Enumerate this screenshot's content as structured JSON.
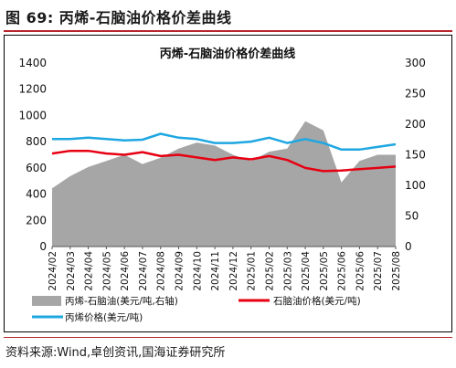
{
  "figure": {
    "title": "图 69:  丙烯-石脑油价格价差曲线",
    "source": "资料来源:Wind,卓创资讯,国海证券研究所"
  },
  "colors": {
    "spread": "#a6a6a6",
    "naphtha": "#e60012",
    "propylene": "#1ea7e1",
    "accent": "#b8262d"
  },
  "chart_data": {
    "type": "area",
    "title": "丙烯-石脑油价格价差曲线",
    "categories": [
      "2024/02",
      "2024/03",
      "2024/04",
      "2024/05",
      "2024/06",
      "2024/07",
      "2024/08",
      "2024/09",
      "2024/10",
      "2024/11",
      "2024/12",
      "2025/01",
      "2025/02",
      "2025/03",
      "2025/04",
      "2025/05",
      "2025/06",
      "2025/06",
      "2025/07",
      "2025/08"
    ],
    "y_left": {
      "min": 0,
      "max": 1400,
      "ticks": [
        0,
        200,
        400,
        600,
        800,
        1000,
        1200,
        1400
      ]
    },
    "y_right": {
      "min": 0,
      "max": 300,
      "ticks": [
        0,
        50,
        100,
        150,
        200,
        250,
        300
      ]
    },
    "grid": false,
    "legend_position": "bottom",
    "series": [
      {
        "name": "丙烯-石脑油(美元/吨,右轴)",
        "type": "area",
        "axis": "right",
        "values": [
          95,
          115,
          130,
          140,
          150,
          135,
          145,
          160,
          170,
          165,
          150,
          140,
          155,
          160,
          205,
          190,
          105,
          140,
          150,
          150
        ]
      },
      {
        "name": "石脑油价格(美元/吨)",
        "type": "line",
        "axis": "left",
        "values": [
          710,
          730,
          730,
          710,
          700,
          720,
          690,
          700,
          680,
          660,
          680,
          665,
          690,
          660,
          600,
          575,
          580,
          590,
          600,
          610
        ]
      },
      {
        "name": "丙烯价格(美元/吨)",
        "type": "line",
        "axis": "left",
        "values": [
          820,
          820,
          830,
          820,
          810,
          815,
          860,
          830,
          820,
          790,
          790,
          800,
          830,
          790,
          820,
          790,
          740,
          740,
          760,
          780
        ]
      }
    ]
  }
}
